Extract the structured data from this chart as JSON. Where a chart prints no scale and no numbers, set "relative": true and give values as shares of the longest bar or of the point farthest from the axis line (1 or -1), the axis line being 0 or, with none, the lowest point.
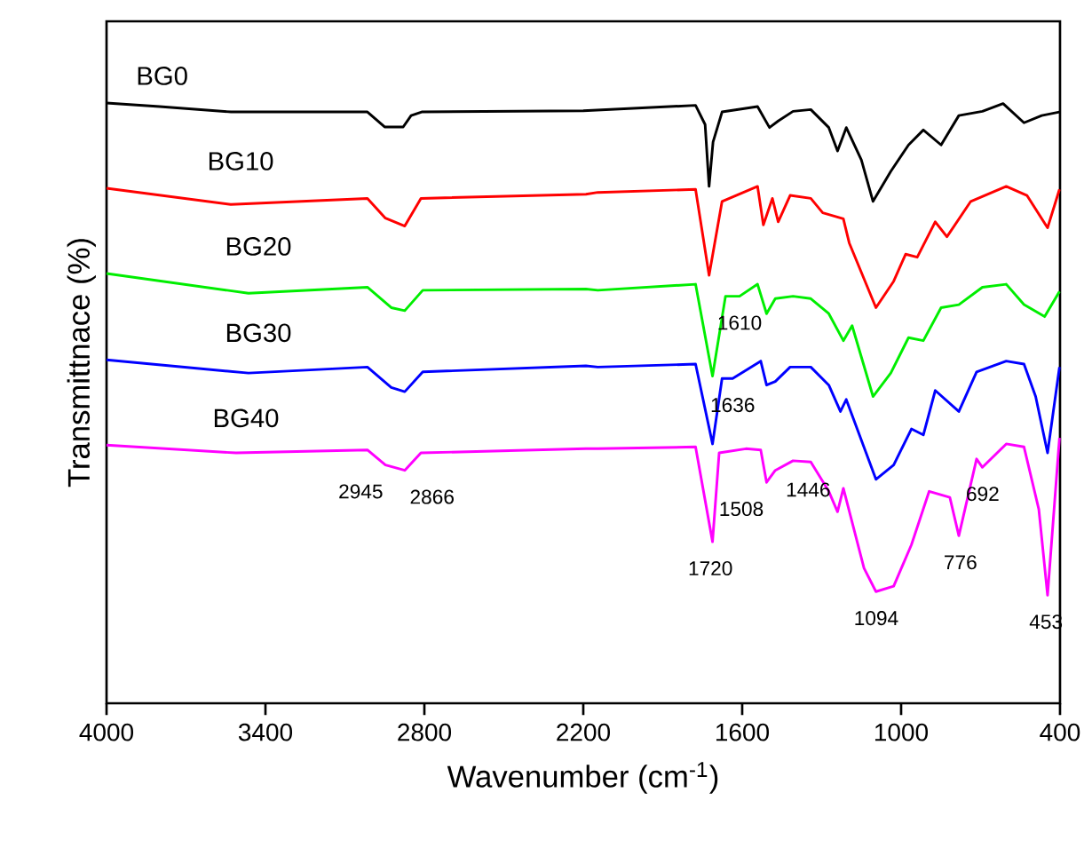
{
  "chart_data": {
    "type": "line",
    "relative": true,
    "xlabel": "Wavenumber (cm$^{-1}$)",
    "ylabel": "Transmittnace (%)",
    "xlim": [
      4000,
      400
    ],
    "xticks": [
      4000,
      3400,
      2800,
      2200,
      1600,
      1000,
      400
    ],
    "grid": false,
    "marker": "none",
    "line_style": "solid",
    "series": [
      {
        "name": "BG0",
        "color": "#000000",
        "x": [
          4000,
          3800,
          3530,
          3015,
          2950,
          2880,
          2850,
          2810,
          2200,
          1776,
          1740,
          1725,
          1710,
          1676,
          1542,
          1497,
          1464,
          1408,
          1341,
          1273,
          1240,
          1207,
          1150,
          1106,
          1039,
          972,
          916,
          849,
          782,
          693,
          615,
          536,
          469,
          402
        ],
        "values": [
          1.0,
          0.994,
          0.985,
          0.985,
          0.96,
          0.96,
          0.979,
          0.985,
          0.987,
          0.996,
          0.964,
          0.861,
          0.935,
          0.985,
          0.994,
          0.959,
          0.97,
          0.986,
          0.989,
          0.959,
          0.92,
          0.959,
          0.905,
          0.836,
          0.886,
          0.93,
          0.955,
          0.93,
          0.979,
          0.986,
          0.999,
          0.967,
          0.979,
          0.985
        ]
      },
      {
        "name": "BG10",
        "color": "#ff0000",
        "x": [
          4000,
          3531,
          3015,
          2947,
          2874,
          2813,
          2190,
          2145,
          1776,
          1725,
          1676,
          1542,
          1520,
          1486,
          1464,
          1419,
          1341,
          1296,
          1218,
          1196,
          1095,
          1028,
          983,
          939,
          871,
          827,
          737,
          603,
          525,
          447,
          402
        ],
        "values": [
          0.858,
          0.831,
          0.841,
          0.808,
          0.795,
          0.841,
          0.848,
          0.851,
          0.856,
          0.713,
          0.836,
          0.861,
          0.797,
          0.841,
          0.802,
          0.846,
          0.841,
          0.817,
          0.807,
          0.767,
          0.659,
          0.703,
          0.748,
          0.743,
          0.802,
          0.777,
          0.836,
          0.861,
          0.846,
          0.792,
          0.856
        ]
      },
      {
        "name": "BG20",
        "color": "#00ee00",
        "x": [
          4000,
          3464,
          3015,
          2925,
          2874,
          2806,
          2190,
          2145,
          1776,
          1712,
          1663,
          1610,
          1542,
          1508,
          1475,
          1408,
          1341,
          1273,
          1218,
          1185,
          1106,
          1039,
          972,
          916,
          849,
          782,
          693,
          603,
          536,
          458,
          402
        ],
        "values": [
          0.716,
          0.683,
          0.693,
          0.659,
          0.654,
          0.688,
          0.69,
          0.688,
          0.698,
          0.545,
          0.678,
          0.678,
          0.698,
          0.649,
          0.674,
          0.678,
          0.674,
          0.649,
          0.604,
          0.629,
          0.511,
          0.55,
          0.609,
          0.604,
          0.659,
          0.664,
          0.693,
          0.698,
          0.664,
          0.644,
          0.686
        ]
      },
      {
        "name": "BG30",
        "color": "#0000ff",
        "x": [
          4000,
          3464,
          3015,
          2925,
          2874,
          2806,
          2190,
          2145,
          1776,
          1712,
          1676,
          1636,
          1530,
          1508,
          1475,
          1419,
          1341,
          1273,
          1229,
          1207,
          1095,
          1028,
          961,
          916,
          871,
          782,
          715,
          603,
          536,
          492,
          447,
          402
        ],
        "values": [
          0.572,
          0.55,
          0.56,
          0.526,
          0.519,
          0.552,
          0.562,
          0.56,
          0.565,
          0.432,
          0.541,
          0.541,
          0.57,
          0.53,
          0.536,
          0.56,
          0.56,
          0.53,
          0.486,
          0.506,
          0.373,
          0.397,
          0.457,
          0.447,
          0.521,
          0.486,
          0.552,
          0.57,
          0.565,
          0.511,
          0.417,
          0.56
        ]
      },
      {
        "name": "BG40",
        "color": "#ff00ff",
        "x": [
          4000,
          3511,
          3015,
          2947,
          2874,
          2813,
          2190,
          2145,
          1776,
          1712,
          1687,
          1586,
          1530,
          1508,
          1475,
          1408,
          1341,
          1273,
          1240,
          1218,
          1140,
          1095,
          1028,
          961,
          894,
          816,
          782,
          715,
          693,
          603,
          536,
          480,
          447,
          402
        ],
        "values": [
          0.43,
          0.417,
          0.422,
          0.397,
          0.388,
          0.417,
          0.424,
          0.424,
          0.427,
          0.269,
          0.417,
          0.424,
          0.422,
          0.368,
          0.388,
          0.404,
          0.402,
          0.353,
          0.319,
          0.358,
          0.225,
          0.186,
          0.195,
          0.264,
          0.353,
          0.343,
          0.279,
          0.407,
          0.393,
          0.432,
          0.427,
          0.323,
          0.18,
          0.442
        ]
      }
    ],
    "annotations": [
      {
        "text": "2945",
        "x": 2945,
        "y": 0.397
      },
      {
        "text": "2866",
        "x": 2866,
        "y": 0.388
      },
      {
        "text": "1610",
        "x": 1610,
        "y": 0.678
      },
      {
        "text": "1636",
        "x": 1636,
        "y": 0.541
      },
      {
        "text": "1720",
        "x": 1720,
        "y": 0.269
      },
      {
        "text": "1508",
        "x": 1508,
        "y": 0.368
      },
      {
        "text": "1446",
        "x": 1446,
        "y": 0.4
      },
      {
        "text": "1094",
        "x": 1094,
        "y": 0.186
      },
      {
        "text": "776",
        "x": 776,
        "y": 0.279
      },
      {
        "text": "692",
        "x": 692,
        "y": 0.393
      },
      {
        "text": "453",
        "x": 453,
        "y": 0.18
      }
    ]
  }
}
